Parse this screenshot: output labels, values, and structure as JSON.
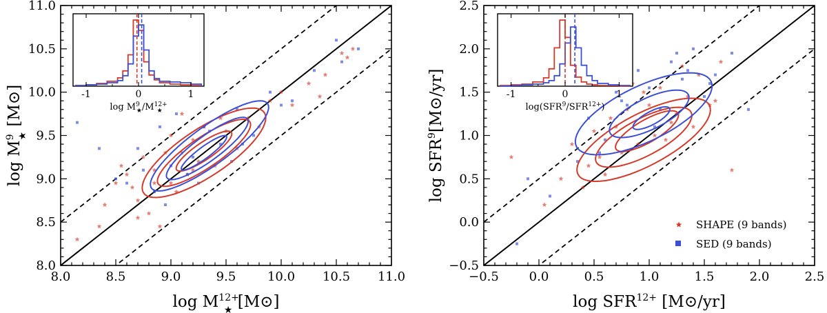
{
  "colors": {
    "shape": "#d43a2a",
    "sed": "#3a4fd6",
    "axis": "#000000"
  },
  "legend": [
    {
      "label": "SHAPE (9 bands)",
      "marker": "star",
      "color": "#d43a2a"
    },
    {
      "label": "SED (9 bands)",
      "marker": "square",
      "color": "#3a4fd6"
    }
  ],
  "chart_data": [
    {
      "type": "scatter",
      "panel": "left",
      "xlabel": "log M★12+ [M⊙]",
      "ylabel": "log M★9 [M⊙]",
      "xlim": [
        8.0,
        11.0
      ],
      "ylim": [
        8.0,
        11.0
      ],
      "xticks": [
        "8.0",
        "8.5",
        "9.0",
        "9.5",
        "10.0",
        "10.5",
        "11.0"
      ],
      "yticks": [
        "8.0",
        "8.5",
        "9.0",
        "9.5",
        "10.0",
        "10.5",
        "11.0"
      ],
      "reference_lines": {
        "one_to_one": true,
        "offset_dashed": 0.5
      },
      "contours": [
        {
          "series": "SHAPE",
          "cx": 9.3,
          "cy": 9.3,
          "a": 0.72,
          "b": 0.25,
          "angle": 42
        },
        {
          "series": "SHAPE",
          "cx": 9.3,
          "cy": 9.3,
          "a": 0.55,
          "b": 0.16,
          "angle": 42
        },
        {
          "series": "SHAPE",
          "cx": 9.3,
          "cy": 9.32,
          "a": 0.33,
          "b": 0.09,
          "angle": 42
        },
        {
          "series": "SED",
          "cx": 9.35,
          "cy": 9.38,
          "a": 0.72,
          "b": 0.2,
          "angle": 44
        },
        {
          "series": "SED",
          "cx": 9.33,
          "cy": 9.35,
          "a": 0.5,
          "b": 0.13,
          "angle": 44
        },
        {
          "series": "SED",
          "cx": 9.3,
          "cy": 9.3,
          "a": 0.28,
          "b": 0.06,
          "angle": 44
        }
      ],
      "series": [
        {
          "name": "SHAPE (9 bands)",
          "marker": "star",
          "x": [
            8.15,
            8.35,
            8.4,
            8.5,
            8.6,
            8.65,
            8.7,
            8.75,
            8.8,
            8.85,
            8.9,
            8.95,
            9.0,
            9.05,
            9.1,
            9.15,
            9.2,
            9.25,
            9.3,
            9.4,
            9.5,
            9.6,
            9.7,
            9.8,
            9.9,
            10.0,
            10.1,
            10.25,
            10.4,
            10.55,
            10.65,
            8.55,
            8.7,
            9.0,
            9.1,
            9.45,
            10.35,
            10.6,
            8.85,
            9.2
          ],
          "y": [
            8.3,
            8.45,
            8.7,
            8.95,
            9.05,
            8.9,
            8.75,
            9.25,
            8.6,
            9.1,
            8.45,
            9.3,
            9.5,
            8.85,
            9.3,
            9.05,
            9.45,
            9.2,
            9.6,
            9.15,
            9.55,
            9.35,
            9.7,
            9.6,
            9.9,
            10.0,
            9.85,
            10.1,
            10.2,
            10.45,
            10.5,
            9.15,
            8.55,
            8.95,
            9.75,
            9.7,
            9.95,
            10.4,
            8.95,
            9.1
          ]
        },
        {
          "name": "SED (9 bands)",
          "marker": "square",
          "x": [
            8.15,
            8.35,
            8.6,
            8.7,
            8.85,
            8.9,
            9.0,
            9.05,
            9.15,
            9.25,
            9.35,
            9.45,
            9.6,
            9.75,
            9.9,
            10.1,
            10.3,
            10.5,
            10.7,
            8.5,
            8.95,
            9.55,
            9.2,
            10.0,
            10.55,
            9.65,
            8.75,
            9.3
          ],
          "y": [
            9.65,
            9.35,
            8.95,
            9.35,
            8.85,
            9.6,
            9.15,
            9.75,
            9.05,
            8.95,
            9.55,
            9.4,
            9.8,
            9.5,
            10.0,
            9.9,
            10.25,
            10.6,
            10.5,
            9.0,
            8.7,
            9.2,
            9.25,
            9.85,
            10.35,
            9.4,
            9.1,
            9.6
          ]
        }
      ],
      "inset": {
        "xlabel": "log M★9/M★12+",
        "xlim": [
          -1.25,
          1.25
        ],
        "xticks": [
          "-1",
          "0",
          "1"
        ],
        "bin_edges": [
          -1.2,
          -1.0,
          -0.8,
          -0.6,
          -0.4,
          -0.3,
          -0.2,
          -0.1,
          0.0,
          0.1,
          0.2,
          0.3,
          0.4,
          0.6,
          0.8,
          1.0,
          1.2
        ],
        "hist_shape": [
          0.01,
          0.02,
          0.04,
          0.07,
          0.12,
          0.22,
          0.45,
          0.95,
          0.8,
          0.35,
          0.16,
          0.09,
          0.05,
          0.03,
          0.02,
          0.01
        ],
        "hist_sed": [
          0.01,
          0.02,
          0.03,
          0.05,
          0.08,
          0.15,
          0.32,
          0.72,
          0.88,
          0.52,
          0.22,
          0.11,
          0.07,
          0.06,
          0.05,
          0.03
        ],
        "median_shape": -0.03,
        "median_sed": 0.06
      }
    },
    {
      "type": "scatter",
      "panel": "right",
      "xlabel": "log SFR12+ [M⊙/yr]",
      "ylabel": "log SFR9 [M⊙/yr]",
      "xlim": [
        -0.5,
        2.5
      ],
      "ylim": [
        -0.5,
        2.5
      ],
      "xticks": [
        "−0.5",
        "0.0",
        "0.5",
        "1.0",
        "1.5",
        "2.0",
        "2.5"
      ],
      "yticks": [
        "−0.5",
        "0.0",
        "0.5",
        "1.0",
        "1.5",
        "2.0",
        "2.5"
      ],
      "reference_lines": {
        "one_to_one": true,
        "offset_dashed": 0.5
      },
      "contours": [
        {
          "series": "SHAPE",
          "cx": 0.95,
          "cy": 0.95,
          "a": 0.72,
          "b": 0.28,
          "angle": 36
        },
        {
          "series": "SHAPE",
          "cx": 0.95,
          "cy": 0.98,
          "a": 0.52,
          "b": 0.2,
          "angle": 36
        },
        {
          "series": "SHAPE",
          "cx": 0.98,
          "cy": 1.05,
          "a": 0.35,
          "b": 0.12,
          "angle": 38
        },
        {
          "series": "SED",
          "cx": 0.95,
          "cy": 1.25,
          "a": 0.72,
          "b": 0.3,
          "angle": 34
        },
        {
          "series": "SED",
          "cx": 1.0,
          "cy": 1.25,
          "a": 0.42,
          "b": 0.17,
          "angle": 34
        },
        {
          "series": "SED",
          "cx": 1.02,
          "cy": 1.2,
          "a": 0.2,
          "b": 0.07,
          "angle": 36
        }
      ],
      "series": [
        {
          "name": "SHAPE (9 bands)",
          "marker": "star",
          "x": [
            -0.25,
            0.05,
            0.2,
            0.3,
            0.45,
            0.5,
            0.6,
            0.7,
            0.75,
            0.8,
            0.9,
            1.0,
            1.05,
            1.1,
            1.2,
            1.25,
            1.35,
            1.45,
            1.55,
            1.65,
            1.75,
            0.4,
            0.65,
            0.95,
            1.15,
            1.4,
            0.85,
            1.3,
            0.55,
            1.6
          ],
          "y": [
            0.75,
            0.2,
            0.5,
            0.9,
            0.65,
            1.05,
            0.55,
            1.1,
            0.8,
            1.3,
            0.9,
            1.35,
            1.0,
            1.55,
            1.15,
            1.25,
            1.45,
            1.7,
            1.35,
            1.85,
            0.6,
            0.4,
            1.2,
            1.5,
            0.95,
            1.1,
            1.6,
            1.8,
            0.75,
            1.4
          ]
        },
        {
          "name": "SED (9 bands)",
          "marker": "square",
          "x": [
            -0.2,
            -0.1,
            0.1,
            0.35,
            0.45,
            0.6,
            0.7,
            0.8,
            0.9,
            1.0,
            1.1,
            1.2,
            1.3,
            1.4,
            1.5,
            1.6,
            1.75,
            1.9,
            0.55,
            1.05,
            1.35,
            1.25,
            0.75,
            1.55
          ],
          "y": [
            -0.25,
            0.5,
            0.3,
            0.7,
            1.2,
            0.95,
            1.5,
            1.35,
            1.75,
            1.55,
            1.3,
            1.85,
            1.65,
            2.0,
            1.45,
            1.7,
            1.95,
            1.3,
            0.8,
            1.1,
            1.75,
            1.95,
            1.4,
            1.6
          ]
        }
      ],
      "inset": {
        "xlabel": "log(SFR9/SFR12+)",
        "xlim": [
          -1.25,
          1.25
        ],
        "xticks": [
          "-1",
          "0",
          "1"
        ],
        "bin_edges": [
          -1.2,
          -1.0,
          -0.8,
          -0.6,
          -0.4,
          -0.3,
          -0.2,
          -0.1,
          0.0,
          0.1,
          0.2,
          0.3,
          0.4,
          0.5,
          0.6,
          0.8,
          1.0,
          1.2
        ],
        "hist_shape": [
          0.01,
          0.02,
          0.03,
          0.06,
          0.12,
          0.25,
          0.55,
          0.95,
          0.7,
          0.3,
          0.13,
          0.06,
          0.03,
          0.02,
          0.01,
          0.01,
          0.0
        ],
        "hist_sed": [
          0.0,
          0.01,
          0.02,
          0.03,
          0.05,
          0.08,
          0.15,
          0.32,
          0.62,
          0.85,
          0.55,
          0.3,
          0.15,
          0.08,
          0.04,
          0.02,
          0.01
        ],
        "median_shape": 0.0,
        "median_sed": 0.18
      }
    }
  ]
}
